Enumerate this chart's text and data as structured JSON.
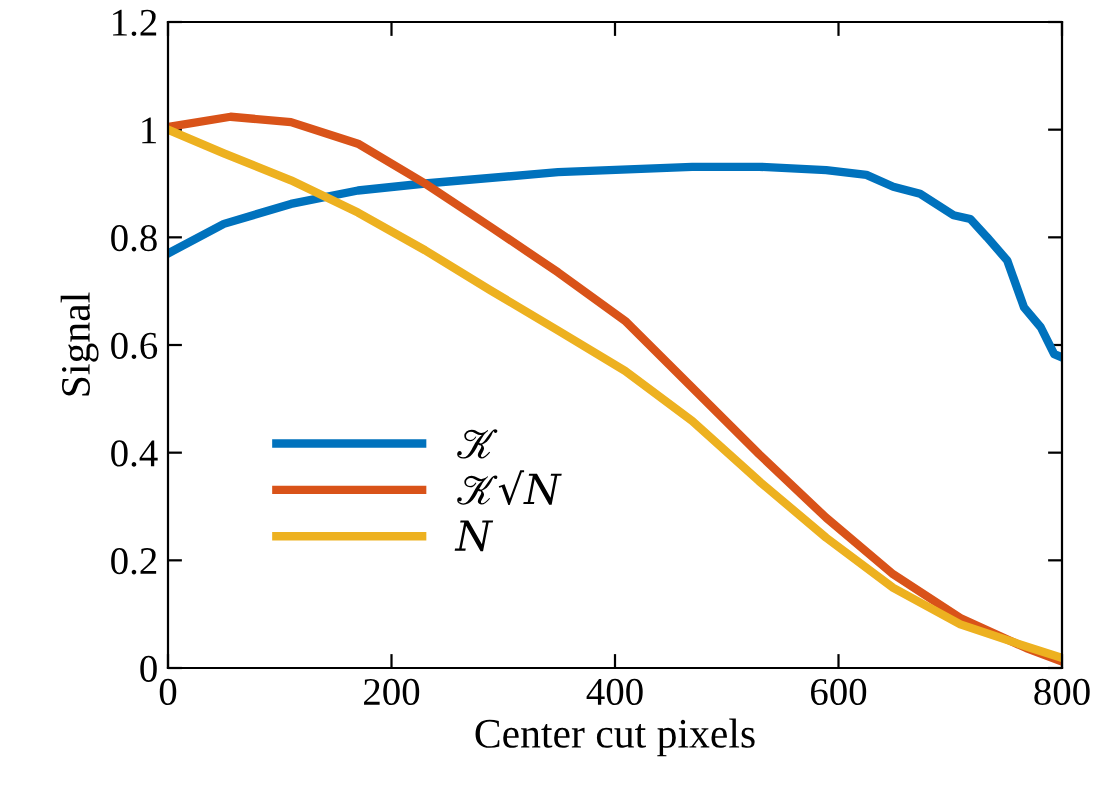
{
  "chart_data": {
    "type": "line",
    "xlabel": "Center cut pixels",
    "ylabel": "Signal",
    "xlim": [
      0,
      800
    ],
    "ylim": [
      0,
      1.2
    ],
    "xticks": [
      0,
      200,
      400,
      600,
      800
    ],
    "yticks": [
      0,
      0.2,
      0.4,
      0.6,
      0.8,
      1,
      1.2
    ],
    "legend": "bottom left",
    "grid": false,
    "series": [
      {
        "name": "𝒦",
        "color": "#0072bd",
        "x": [
          0,
          50,
          110,
          170,
          230,
          349,
          469,
          529,
          589,
          625,
          649,
          673,
          703,
          718,
          733,
          751,
          766,
          781,
          793,
          800
        ],
        "values": [
          0.77,
          0.825,
          0.862,
          0.887,
          0.9,
          0.921,
          0.931,
          0.931,
          0.925,
          0.916,
          0.894,
          0.881,
          0.841,
          0.834,
          0.8,
          0.757,
          0.67,
          0.633,
          0.583,
          0.577
        ]
      },
      {
        "name": "𝒦√𝑁",
        "color": "#d95319",
        "x": [
          0,
          56,
          110,
          170,
          230,
          289,
          349,
          409,
          469,
          529,
          589,
          649,
          709,
          768,
          800
        ],
        "values": [
          1.005,
          1.024,
          1.014,
          0.974,
          0.9,
          0.819,
          0.735,
          0.645,
          0.521,
          0.397,
          0.279,
          0.174,
          0.093,
          0.037,
          0.012
        ]
      },
      {
        "name": "𝑁",
        "color": "#edb120",
        "x": [
          0,
          50,
          110,
          170,
          230,
          289,
          349,
          409,
          469,
          529,
          589,
          649,
          709,
          768,
          800
        ],
        "values": [
          1.0,
          0.956,
          0.906,
          0.846,
          0.776,
          0.701,
          0.627,
          0.552,
          0.459,
          0.347,
          0.242,
          0.149,
          0.081,
          0.04,
          0.019
        ]
      }
    ]
  }
}
